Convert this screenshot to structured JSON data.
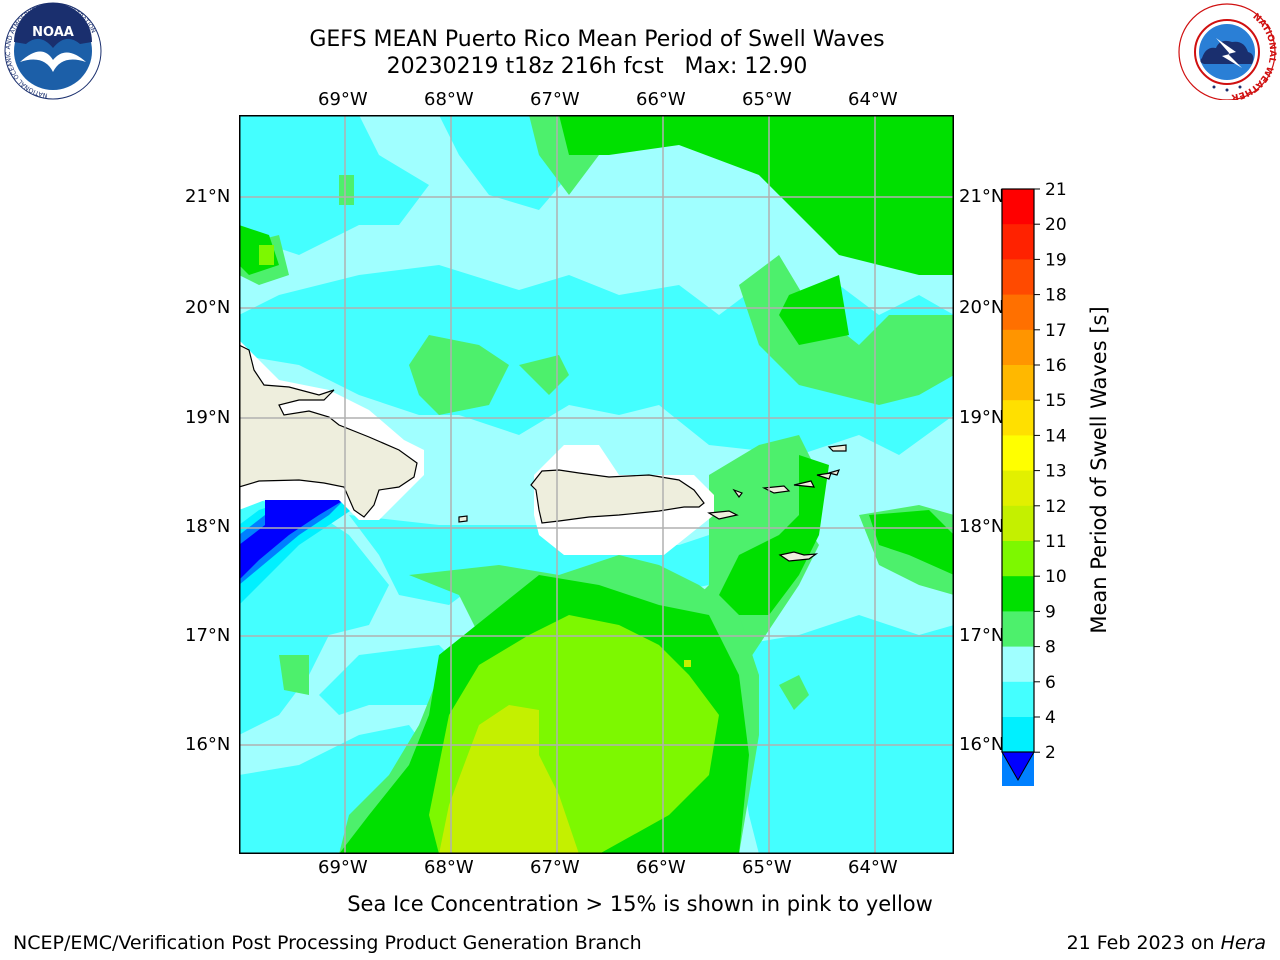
{
  "header": {
    "title_line1": "GEFS MEAN Puerto Rico Mean Period of Swell Waves",
    "title_line2": "20230219 t18z 216h fcst   Max: 12.90"
  },
  "logos": {
    "left": "noaa-logo",
    "right": "national-weather-service-logo",
    "left_text": "NOAA",
    "left_ring_text": "NATIONAL OCEANIC AND ATMOSPHERIC ADMINISTRATION",
    "left_ring_bottom": "U.S. DEPARTMENT OF COMMERCE",
    "right_ring_text": "NATIONAL WEATHER SERVICE"
  },
  "map": {
    "lon_labels": [
      "69°W",
      "68°W",
      "67°W",
      "66°W",
      "65°W",
      "64°W"
    ],
    "lat_labels": [
      "21°N",
      "20°N",
      "19°N",
      "18°N",
      "17°N",
      "16°N"
    ]
  },
  "colorbar": {
    "label": "Mean Period of Swell Waves [s]",
    "ticks": [
      "21",
      "20",
      "19",
      "18",
      "17",
      "16",
      "15",
      "14",
      "13",
      "12",
      "11",
      "10",
      "9",
      "8",
      "6",
      "4",
      "2"
    ],
    "colors": [
      "#ff0000",
      "#ff2200",
      "#ff4a00",
      "#ff7000",
      "#ff9500",
      "#ffb800",
      "#ffe000",
      "#ffff00",
      "#e2f000",
      "#c4f000",
      "#7df800",
      "#00e000",
      "#4df06c",
      "#a0ffff",
      "#44ffff",
      "#00f0ff",
      "#0080ff"
    ],
    "extend_color": "#0000ff"
  },
  "footer": {
    "note": "Sea Ice Concentration > 15% is shown in pink to yellow",
    "left": "NCEP/EMC/Verification Post Processing Product Generation Branch",
    "right_date": "21 Feb 2023 on ",
    "right_host": "Hera"
  }
}
